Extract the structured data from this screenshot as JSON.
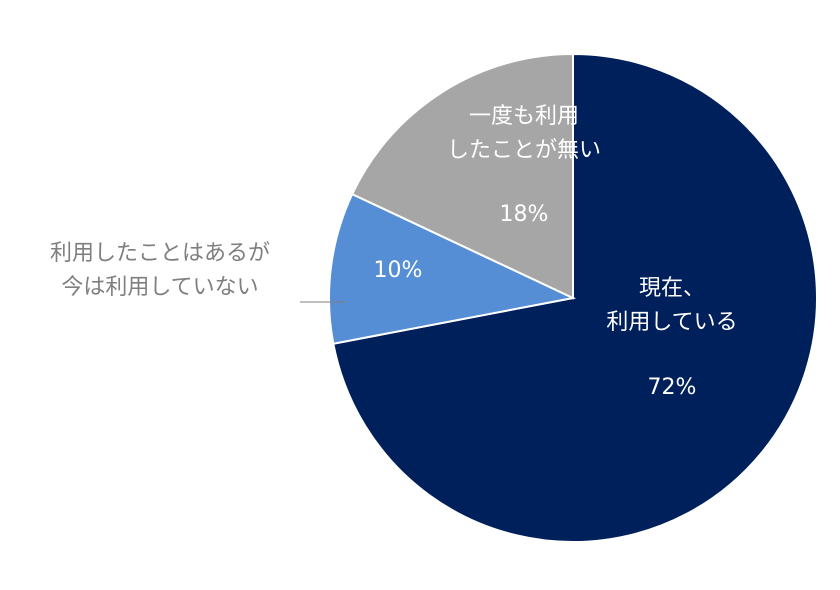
{
  "chart_data": {
    "type": "pie",
    "categories": [
      "現在、\n利用している",
      "利用したことはあるが\n今は利用していない",
      "一度も利用\nしたことが無い"
    ],
    "values": [
      72,
      10,
      18
    ],
    "value_labels": [
      "72%",
      "10%",
      "18%"
    ],
    "colors": [
      "#00205b",
      "#558ed5",
      "#a6a6a6"
    ]
  }
}
